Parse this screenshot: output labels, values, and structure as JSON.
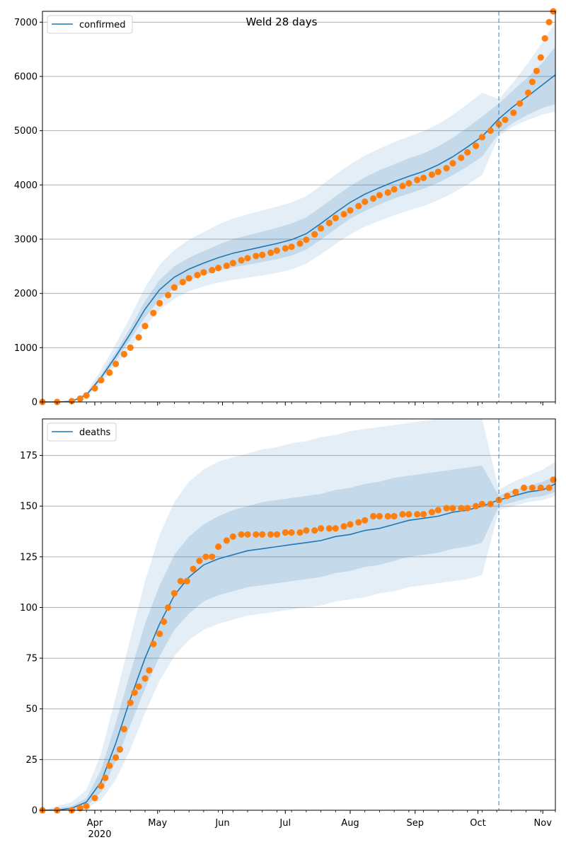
{
  "title": "Weld 28 days",
  "colors": {
    "model_line": "#1f77b4",
    "observed_points": "#ff7f0e",
    "band": "#1f77b4",
    "grid": "#b0b0b0",
    "forecast_line": "#1f77b4"
  },
  "x_axis": {
    "tick_labels": [
      "Apr",
      "May",
      "Jun",
      "Jul",
      "Aug",
      "Sep",
      "Oct",
      "Nov"
    ],
    "year_label": "2020",
    "start_date": "2020-03-07",
    "end_date": "2020-11-07",
    "forecast_start_date": "2020-10-11"
  },
  "chart_data": [
    {
      "type": "line",
      "legend": "confirmed",
      "legend_position": "top-left",
      "grid": "horizontal",
      "ylim": [
        0,
        7200
      ],
      "yticks": [
        0,
        1000,
        2000,
        3000,
        4000,
        5000,
        6000,
        7000
      ],
      "model_median": {
        "x": [
          "2020-03-07",
          "2020-03-14",
          "2020-03-21",
          "2020-03-28",
          "2020-04-04",
          "2020-04-11",
          "2020-04-18",
          "2020-04-25",
          "2020-05-02",
          "2020-05-09",
          "2020-05-16",
          "2020-05-23",
          "2020-05-30",
          "2020-06-06",
          "2020-06-13",
          "2020-06-20",
          "2020-06-27",
          "2020-07-04",
          "2020-07-11",
          "2020-07-18",
          "2020-07-25",
          "2020-08-01",
          "2020-08-08",
          "2020-08-15",
          "2020-08-22",
          "2020-08-29",
          "2020-09-05",
          "2020-09-12",
          "2020-09-19",
          "2020-09-26",
          "2020-10-03",
          "2020-10-11",
          "2020-10-18",
          "2020-10-25",
          "2020-11-01",
          "2020-11-07"
        ],
        "y": [
          0,
          0,
          10,
          130,
          450,
          840,
          1260,
          1710,
          2070,
          2300,
          2450,
          2560,
          2660,
          2740,
          2800,
          2860,
          2920,
          2990,
          3100,
          3290,
          3490,
          3680,
          3830,
          3950,
          4060,
          4160,
          4250,
          4370,
          4520,
          4700,
          4890,
          5220,
          5450,
          5640,
          5850,
          6030
        ]
      },
      "band_inner": {
        "low": [
          0,
          0,
          8,
          110,
          400,
          760,
          1150,
          1560,
          1890,
          2100,
          2240,
          2340,
          2420,
          2480,
          2530,
          2580,
          2630,
          2700,
          2810,
          2990,
          3190,
          3380,
          3520,
          3640,
          3750,
          3840,
          3930,
          4040,
          4180,
          4340,
          4520,
          4950,
          5150,
          5300,
          5420,
          5490
        ],
        "high": [
          0,
          0,
          12,
          150,
          500,
          920,
          1370,
          1860,
          2250,
          2500,
          2660,
          2780,
          2900,
          3000,
          3070,
          3140,
          3210,
          3290,
          3400,
          3590,
          3790,
          3980,
          4140,
          4270,
          4380,
          4490,
          4580,
          4710,
          4870,
          5060,
          5260,
          5500,
          5750,
          5990,
          6260,
          6550
        ]
      },
      "band_outer": {
        "low": [
          0,
          0,
          5,
          90,
          340,
          660,
          1010,
          1380,
          1700,
          1900,
          2040,
          2130,
          2200,
          2250,
          2290,
          2330,
          2380,
          2440,
          2550,
          2720,
          2910,
          3090,
          3230,
          3340,
          3440,
          3530,
          3610,
          3720,
          3850,
          4010,
          4180,
          4900,
          5080,
          5200,
          5300,
          5350
        ],
        "high": [
          0,
          0,
          18,
          180,
          590,
          1070,
          1570,
          2110,
          2530,
          2800,
          2990,
          3130,
          3270,
          3380,
          3460,
          3530,
          3600,
          3680,
          3790,
          3990,
          4190,
          4380,
          4540,
          4670,
          4790,
          4890,
          4990,
          5120,
          5290,
          5490,
          5700,
          5580,
          5900,
          6250,
          6640,
          7000
        ]
      },
      "observed": {
        "x": [
          "2020-03-07",
          "2020-03-14",
          "2020-03-21",
          "2020-03-25",
          "2020-03-28",
          "2020-04-01",
          "2020-04-04",
          "2020-04-08",
          "2020-04-11",
          "2020-04-15",
          "2020-04-18",
          "2020-04-22",
          "2020-04-25",
          "2020-04-29",
          "2020-05-02",
          "2020-05-06",
          "2020-05-09",
          "2020-05-13",
          "2020-05-16",
          "2020-05-20",
          "2020-05-23",
          "2020-05-27",
          "2020-05-30",
          "2020-06-03",
          "2020-06-06",
          "2020-06-10",
          "2020-06-13",
          "2020-06-17",
          "2020-06-20",
          "2020-06-24",
          "2020-06-27",
          "2020-07-01",
          "2020-07-04",
          "2020-07-08",
          "2020-07-11",
          "2020-07-15",
          "2020-07-18",
          "2020-07-22",
          "2020-07-25",
          "2020-07-29",
          "2020-08-01",
          "2020-08-05",
          "2020-08-08",
          "2020-08-12",
          "2020-08-15",
          "2020-08-19",
          "2020-08-22",
          "2020-08-26",
          "2020-08-29",
          "2020-09-02",
          "2020-09-05",
          "2020-09-09",
          "2020-09-12",
          "2020-09-16",
          "2020-09-19",
          "2020-09-23",
          "2020-09-26",
          "2020-09-30",
          "2020-10-03",
          "2020-10-07",
          "2020-10-11",
          "2020-10-14",
          "2020-10-18",
          "2020-10-21",
          "2020-10-25",
          "2020-10-27",
          "2020-10-29",
          "2020-10-31",
          "2020-11-02",
          "2020-11-04",
          "2020-11-06"
        ],
        "y": [
          0,
          0,
          15,
          60,
          120,
          250,
          400,
          540,
          700,
          880,
          1000,
          1190,
          1400,
          1640,
          1820,
          1970,
          2110,
          2210,
          2280,
          2340,
          2390,
          2430,
          2470,
          2510,
          2560,
          2610,
          2650,
          2690,
          2710,
          2750,
          2790,
          2830,
          2860,
          2920,
          2990,
          3090,
          3200,
          3300,
          3390,
          3460,
          3530,
          3610,
          3690,
          3750,
          3810,
          3860,
          3920,
          3980,
          4030,
          4090,
          4130,
          4190,
          4240,
          4310,
          4400,
          4500,
          4600,
          4720,
          4880,
          5000,
          5120,
          5200,
          5330,
          5500,
          5700,
          5900,
          6100,
          6350,
          6700,
          7000,
          7200
        ]
      }
    },
    {
      "type": "line",
      "legend": "deaths",
      "legend_position": "top-left",
      "grid": "horizontal",
      "ylim": [
        0,
        193
      ],
      "yticks": [
        0,
        25,
        50,
        75,
        100,
        125,
        150,
        175
      ],
      "model_median": {
        "x": [
          "2020-03-07",
          "2020-03-14",
          "2020-03-21",
          "2020-03-28",
          "2020-04-04",
          "2020-04-11",
          "2020-04-18",
          "2020-04-25",
          "2020-05-02",
          "2020-05-09",
          "2020-05-16",
          "2020-05-23",
          "2020-05-30",
          "2020-06-06",
          "2020-06-13",
          "2020-06-20",
          "2020-06-27",
          "2020-07-04",
          "2020-07-11",
          "2020-07-18",
          "2020-07-25",
          "2020-08-01",
          "2020-08-08",
          "2020-08-15",
          "2020-08-22",
          "2020-08-29",
          "2020-09-05",
          "2020-09-12",
          "2020-09-19",
          "2020-09-26",
          "2020-10-03",
          "2020-10-11",
          "2020-10-18",
          "2020-10-25",
          "2020-11-01",
          "2020-11-07"
        ],
        "y": [
          0,
          0,
          1,
          4,
          14,
          33,
          55,
          75,
          92,
          106,
          115,
          121,
          124,
          126,
          128,
          129,
          130,
          131,
          132,
          133,
          135,
          136,
          138,
          139,
          141,
          143,
          144,
          145,
          147,
          148,
          150,
          153,
          155,
          157,
          158,
          161
        ]
      },
      "band_inner": {
        "low": [
          0,
          0,
          0,
          2,
          9,
          24,
          42,
          60,
          76,
          89,
          97,
          103,
          106,
          108,
          110,
          111,
          112,
          113,
          114,
          115,
          117,
          118,
          120,
          121,
          123,
          125,
          126,
          127,
          129,
          130,
          132,
          150,
          152,
          154,
          155,
          157
        ],
        "high": [
          0,
          1,
          2,
          6,
          20,
          43,
          68,
          92,
          111,
          126,
          135,
          141,
          145,
          148,
          150,
          152,
          153,
          154,
          155,
          156,
          158,
          159,
          161,
          162,
          164,
          165,
          166,
          167,
          168,
          169,
          170,
          155,
          158,
          160,
          162,
          165
        ]
      },
      "band_outer": {
        "low": [
          0,
          0,
          0,
          1,
          5,
          15,
          30,
          48,
          64,
          76,
          84,
          89,
          92,
          94,
          96,
          97,
          98,
          99,
          100,
          101,
          103,
          104,
          105,
          107,
          108,
          110,
          111,
          112,
          113,
          114,
          116,
          148,
          150,
          152,
          153,
          155
        ],
        "high": [
          0,
          2,
          4,
          10,
          28,
          56,
          85,
          113,
          136,
          152,
          162,
          168,
          172,
          174,
          176,
          178,
          179,
          181,
          182,
          184,
          185,
          187,
          188,
          189,
          190,
          191,
          192,
          193,
          193,
          193,
          193,
          158,
          162,
          165,
          168,
          172
        ]
      },
      "observed": {
        "x": [
          "2020-03-07",
          "2020-03-14",
          "2020-03-21",
          "2020-03-25",
          "2020-03-28",
          "2020-04-01",
          "2020-04-04",
          "2020-04-06",
          "2020-04-08",
          "2020-04-11",
          "2020-04-13",
          "2020-04-15",
          "2020-04-18",
          "2020-04-20",
          "2020-04-22",
          "2020-04-25",
          "2020-04-27",
          "2020-04-29",
          "2020-05-02",
          "2020-05-04",
          "2020-05-06",
          "2020-05-09",
          "2020-05-12",
          "2020-05-15",
          "2020-05-18",
          "2020-05-21",
          "2020-05-24",
          "2020-05-27",
          "2020-05-30",
          "2020-06-03",
          "2020-06-06",
          "2020-06-10",
          "2020-06-13",
          "2020-06-17",
          "2020-06-20",
          "2020-06-24",
          "2020-06-27",
          "2020-07-01",
          "2020-07-04",
          "2020-07-08",
          "2020-07-11",
          "2020-07-15",
          "2020-07-18",
          "2020-07-22",
          "2020-07-25",
          "2020-07-29",
          "2020-08-01",
          "2020-08-05",
          "2020-08-08",
          "2020-08-12",
          "2020-08-15",
          "2020-08-19",
          "2020-08-22",
          "2020-08-26",
          "2020-08-29",
          "2020-09-02",
          "2020-09-05",
          "2020-09-09",
          "2020-09-12",
          "2020-09-16",
          "2020-09-19",
          "2020-09-23",
          "2020-09-26",
          "2020-09-30",
          "2020-10-03",
          "2020-10-07",
          "2020-10-11",
          "2020-10-15",
          "2020-10-19",
          "2020-10-23",
          "2020-10-27",
          "2020-10-31",
          "2020-11-04",
          "2020-11-06"
        ],
        "y": [
          0,
          0,
          0,
          1,
          2,
          6,
          12,
          16,
          22,
          26,
          30,
          40,
          53,
          58,
          61,
          65,
          69,
          82,
          87,
          93,
          100,
          107,
          113,
          113,
          119,
          123,
          125,
          125,
          130,
          133,
          135,
          136,
          136,
          136,
          136,
          136,
          136,
          137,
          137,
          137,
          138,
          138,
          139,
          139,
          139,
          140,
          141,
          142,
          143,
          145,
          145,
          145,
          145,
          146,
          146,
          146,
          146,
          147,
          148,
          149,
          149,
          149,
          149,
          150,
          151,
          151,
          153,
          155,
          157,
          159,
          159,
          159,
          159,
          163
        ]
      }
    }
  ]
}
